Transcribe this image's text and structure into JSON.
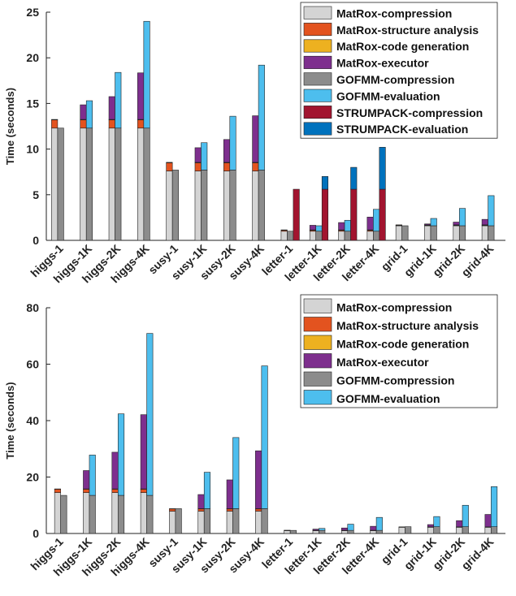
{
  "series_colors": {
    "MatRox-compression": "#d4d4d4",
    "MatRox-structure analysis": "#e3531f",
    "MatRox-code generation": "#edb120",
    "MatRox-executor": "#7e2f8e",
    "GOFMM-compression": "#8c8c8c",
    "GOFMM-evaluation": "#4dbeee",
    "STRUMPACK-compression": "#a2142f",
    "STRUMPACK-evaluation": "#0072bd"
  },
  "chart_data": [
    {
      "type": "bar",
      "stacked": true,
      "grouped": true,
      "ylabel": "Time (seconds)",
      "ylim": [
        0,
        25
      ],
      "yticks": [
        0,
        5,
        10,
        15,
        20,
        25
      ],
      "grid": false,
      "legend_position": "top-right",
      "categories": [
        "higgs-1",
        "higgs-1K",
        "higgs-2K",
        "higgs-4K",
        "susy-1",
        "susy-1K",
        "susy-2K",
        "susy-4K",
        "letter-1",
        "letter-1K",
        "letter-2K",
        "letter-4K",
        "grid-1",
        "grid-1K",
        "grid-2K",
        "grid-4K"
      ],
      "series": [
        {
          "name": "MatRox-compression",
          "group": "MatRox",
          "values": [
            12.3,
            12.3,
            12.3,
            12.3,
            7.6,
            7.6,
            7.6,
            7.6,
            1.0,
            1.0,
            1.0,
            1.0,
            1.6,
            1.6,
            1.6,
            1.6
          ]
        },
        {
          "name": "MatRox-structure analysis",
          "group": "MatRox",
          "values": [
            0.9,
            0.9,
            0.9,
            0.9,
            0.9,
            0.9,
            0.9,
            0.9,
            0.1,
            0.1,
            0.1,
            0.1,
            0.05,
            0.05,
            0.05,
            0.05
          ]
        },
        {
          "name": "MatRox-code generation",
          "group": "MatRox",
          "values": [
            0.05,
            0.05,
            0.05,
            0.05,
            0.05,
            0.05,
            0.05,
            0.05,
            0.05,
            0.05,
            0.05,
            0.05,
            0.05,
            0.05,
            0.05,
            0.05
          ]
        },
        {
          "name": "MatRox-executor",
          "group": "MatRox",
          "values": [
            0,
            1.6,
            2.5,
            5.1,
            0,
            1.6,
            2.5,
            5.1,
            0,
            0.5,
            0.8,
            1.4,
            0,
            0.1,
            0.3,
            0.6
          ]
        },
        {
          "name": "GOFMM-compression",
          "group": "GOFMM",
          "values": [
            12.3,
            12.3,
            12.3,
            12.3,
            7.7,
            7.7,
            7.7,
            7.7,
            1.0,
            1.0,
            1.0,
            1.0,
            1.6,
            1.6,
            1.6,
            1.6
          ]
        },
        {
          "name": "GOFMM-evaluation",
          "group": "GOFMM",
          "values": [
            0,
            3.0,
            6.1,
            11.7,
            0,
            3.0,
            5.9,
            11.5,
            0,
            0.6,
            1.2,
            2.4,
            0,
            0.8,
            1.9,
            3.3
          ]
        },
        {
          "name": "STRUMPACK-compression",
          "group": "STRUMPACK",
          "values": [
            0,
            0,
            0,
            0,
            0,
            0,
            0,
            0,
            5.6,
            5.6,
            5.6,
            5.6,
            0,
            0,
            0,
            0
          ]
        },
        {
          "name": "STRUMPACK-evaluation",
          "group": "STRUMPACK",
          "values": [
            0,
            0,
            0,
            0,
            0,
            0,
            0,
            0,
            0,
            1.4,
            2.4,
            4.6,
            0,
            0,
            0,
            0
          ]
        }
      ]
    },
    {
      "type": "bar",
      "stacked": true,
      "grouped": true,
      "ylabel": "Time (seconds)",
      "ylim": [
        0,
        80
      ],
      "yticks": [
        0,
        20,
        40,
        60,
        80
      ],
      "grid": false,
      "legend_position": "top-right",
      "categories": [
        "higgs-1",
        "higgs-1K",
        "higgs-2K",
        "higgs-4K",
        "susy-1",
        "susy-1K",
        "susy-2K",
        "susy-4K",
        "letter-1",
        "letter-1K",
        "letter-2K",
        "letter-4K",
        "grid-1",
        "grid-1K",
        "grid-2K",
        "grid-4K"
      ],
      "series": [
        {
          "name": "MatRox-compression",
          "group": "MatRox",
          "values": [
            14.5,
            14.5,
            14.5,
            14.5,
            7.9,
            7.9,
            7.9,
            7.9,
            1.0,
            1.0,
            1.0,
            1.0,
            2.2,
            2.2,
            2.2,
            2.2
          ]
        },
        {
          "name": "MatRox-structure analysis",
          "group": "MatRox",
          "values": [
            1.2,
            1.2,
            1.2,
            1.2,
            0.8,
            0.8,
            0.8,
            0.8,
            0.1,
            0.1,
            0.1,
            0.1,
            0.1,
            0.1,
            0.1,
            0.1
          ]
        },
        {
          "name": "MatRox-code generation",
          "group": "MatRox",
          "values": [
            0.1,
            0.1,
            0.1,
            0.1,
            0.1,
            0.1,
            0.1,
            0.1,
            0.05,
            0.05,
            0.05,
            0.05,
            0.05,
            0.05,
            0.05,
            0.05
          ]
        },
        {
          "name": "MatRox-executor",
          "group": "MatRox",
          "values": [
            0,
            6.5,
            13.0,
            26.3,
            0,
            5.0,
            10.2,
            20.5,
            0,
            0.4,
            0.8,
            1.4,
            0,
            0.8,
            2.2,
            4.4
          ]
        },
        {
          "name": "GOFMM-compression",
          "group": "GOFMM",
          "values": [
            13.5,
            13.5,
            13.5,
            13.5,
            8.8,
            8.8,
            8.8,
            8.8,
            1.1,
            1.1,
            1.1,
            1.1,
            2.4,
            2.4,
            2.4,
            2.4
          ]
        },
        {
          "name": "GOFMM-evaluation",
          "group": "GOFMM",
          "values": [
            0,
            14.3,
            28.9,
            57.4,
            0,
            12.9,
            25.2,
            50.6,
            0,
            0.7,
            2.2,
            4.6,
            0,
            3.6,
            7.6,
            14.2
          ]
        }
      ]
    }
  ]
}
